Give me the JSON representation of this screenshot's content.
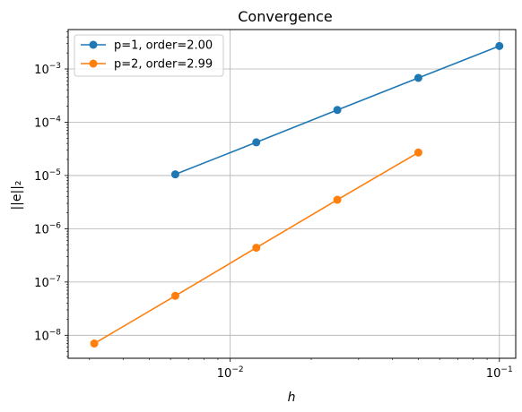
{
  "chart_data": {
    "type": "line",
    "title": "Convergence",
    "xlabel": "h",
    "ylabel": "||e||₂",
    "xscale": "log",
    "yscale": "log",
    "xlim": [
      0.0025,
      0.115
    ],
    "ylim": [
      3.7e-09,
      0.0055
    ],
    "grid": true,
    "legend_position": "upper-left",
    "x_ticks": [
      {
        "value": 0.01,
        "base": "10",
        "exp": "−2"
      },
      {
        "value": 0.1,
        "base": "10",
        "exp": "−1"
      }
    ],
    "y_ticks": [
      {
        "value": 1e-08,
        "base": "10",
        "exp": "−8"
      },
      {
        "value": 1e-07,
        "base": "10",
        "exp": "−7"
      },
      {
        "value": 1e-06,
        "base": "10",
        "exp": "−6"
      },
      {
        "value": 1e-05,
        "base": "10",
        "exp": "−5"
      },
      {
        "value": 0.0001,
        "base": "10",
        "exp": "−4"
      },
      {
        "value": 0.001,
        "base": "10",
        "exp": "−3"
      }
    ],
    "series": [
      {
        "name": "p=1, order=2.00",
        "color": "#1f77b4",
        "x": [
          0.00625,
          0.0125,
          0.025,
          0.05,
          0.1
        ],
        "y": [
          1.05e-05,
          4.2e-05,
          0.00017,
          0.00068,
          0.0027
        ]
      },
      {
        "name": "p=2, order=2.99",
        "color": "#ff7f0e",
        "x": [
          0.003125,
          0.00625,
          0.0125,
          0.025,
          0.05
        ],
        "y": [
          7e-09,
          5.5e-08,
          4.4e-07,
          3.5e-06,
          2.7e-05
        ]
      }
    ]
  }
}
